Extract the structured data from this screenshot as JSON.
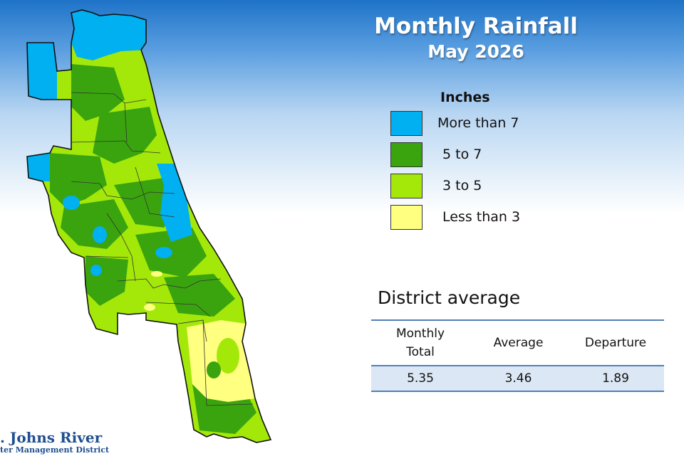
{
  "title": "Monthly Rainfall",
  "subtitle": "May 2026",
  "legend": {
    "title": "Inches",
    "items": [
      {
        "label": "More than 7",
        "color": "#00b0f0"
      },
      {
        "label": "5 to 7",
        "color": "#3aa40e"
      },
      {
        "label": "3 to 5",
        "color": "#a4e80a"
      },
      {
        "label": "Less than 3",
        "color": "#ffff80"
      }
    ]
  },
  "district_average": {
    "title": "District average",
    "headers": [
      "Monthly Total",
      "Average",
      "Departure"
    ],
    "values": [
      "5.35",
      "3.46",
      "1.89"
    ]
  },
  "logo": {
    "line1": ". Johns River",
    "line2": "ter Management District"
  }
}
